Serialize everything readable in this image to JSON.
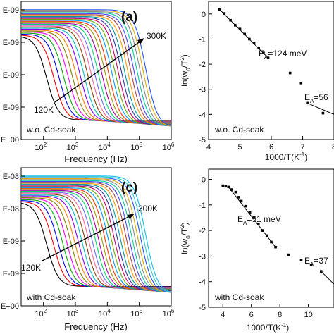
{
  "figure": {
    "panels": [
      {
        "label": "(a)",
        "annotation_high": "300K",
        "annotation_low": "120K",
        "sample": "w.o. Cd-soak"
      },
      {
        "label": "",
        "fit1": "E<sub>A</sub>=124 meV",
        "fit1_text": "E",
        "fit1_sub": "A",
        "fit1_rest": "=124 meV",
        "fit2_text": "E",
        "fit2_sub": "A",
        "fit2_rest": "=56",
        "sample": "w.o. Cd-soak"
      },
      {
        "label": "(c)",
        "annotation_high": "300K",
        "annotation_low": "120K",
        "sample": "with Cd-soak"
      },
      {
        "label": "",
        "fit1_text": "E",
        "fit1_sub": "A",
        "fit1_rest": "=51 meV",
        "fit2_text": "E",
        "fit2_sub": "A",
        "fit2_rest": "=37",
        "sample": "with Cd-soak"
      }
    ],
    "colors": [
      "#000000",
      "#ff0000",
      "#0000ff",
      "#00aa00",
      "#ff00ff",
      "#808000",
      "#ff8000",
      "#8000ff",
      "#00c0c0",
      "#804000",
      "#ff6699",
      "#6666ff",
      "#00dd66",
      "#aa00aa",
      "#999900",
      "#ff3300",
      "#0099ff",
      "#66aa00",
      "#cc0066",
      "#3333aa",
      "#009999",
      "#ff9900",
      "#aa4444",
      "#4444ff",
      "#00cc99",
      "#888888",
      "#ddaa00",
      "#2255ff",
      "#33cccc",
      "#11bbee"
    ]
  },
  "chart_data": [
    {
      "type": "line",
      "panel": "a",
      "xlabel": "Frequency (Hz)",
      "ylabel": "",
      "x_scale": "log",
      "xlim": [
        20,
        1000000
      ],
      "x_ticks": [
        "10^2",
        "10^3",
        "10^4",
        "10^5",
        "10^6"
      ],
      "y_ticks": [
        "E-09",
        "E-09",
        "E-09",
        "E+00"
      ],
      "y_tick_top": "E-09",
      "series_count": 28,
      "temperature_range": [
        "120K",
        "300K"
      ],
      "annotations": [
        "300K",
        "120K",
        "(a)",
        "w.o. Cd-soak"
      ]
    },
    {
      "type": "scatter",
      "panel": "b",
      "xlabel": "1000/T(K<sup>-1</sup>)",
      "xlabel_plain": "1000/T(K",
      "xlabel_sup": "-1",
      "xlabel_end": ")",
      "ylabel_plain": "ln(w",
      "ylabel_sub": "0",
      "ylabel_mid": "/T",
      "ylabel_sup": "2",
      "ylabel_end": ")",
      "xlim": [
        4,
        8
      ],
      "ylim": [
        -5,
        0.5
      ],
      "x_ticks": [
        "4",
        "5",
        "6",
        "7",
        "8"
      ],
      "y_ticks": [
        "0",
        "-1",
        "-2",
        "-3",
        "-4",
        "-5"
      ],
      "points_x": [
        4.35,
        4.5,
        4.7,
        4.85,
        5.0,
        5.15,
        5.3,
        5.45,
        5.6,
        5.75,
        5.9,
        6.6,
        6.95,
        7.15,
        7.65
      ],
      "points_y": [
        0.18,
        0.02,
        -0.25,
        -0.45,
        -0.6,
        -0.8,
        -1.0,
        -1.15,
        -1.35,
        -1.55,
        -1.75,
        -2.35,
        -2.75,
        -3.55,
        -3.95
      ],
      "fit_lines": [
        {
          "x": [
            4.35,
            5.9
          ],
          "y": [
            0.18,
            -1.75
          ]
        },
        {
          "x": [
            7.15,
            8.0
          ],
          "y": [
            -3.55,
            -4.0
          ]
        }
      ],
      "annotations": [
        "E_A=124 meV",
        "E_A=56",
        "w.o. Cd-soak"
      ]
    },
    {
      "type": "line",
      "panel": "c",
      "xlabel": "Frequency (Hz)",
      "ylabel": "",
      "x_scale": "log",
      "xlim": [
        20,
        1000000
      ],
      "x_ticks": [
        "10^2",
        "10^3",
        "10^4",
        "10^5",
        "10^6"
      ],
      "y_ticks": [
        "E-08",
        "E-08",
        "E-09",
        "E-09",
        "E+00"
      ],
      "series_count": 30,
      "temperature_range": [
        "120K",
        "300K"
      ],
      "annotations": [
        "300K",
        "120K",
        "(c)",
        "with Cd-soak"
      ]
    },
    {
      "type": "scatter",
      "panel": "d",
      "xlabel_plain": "1000/T(K",
      "xlabel_sup": "-1",
      "xlabel_end": ")",
      "ylabel_plain": "ln(w",
      "ylabel_sub": "0",
      "ylabel_mid": "/T",
      "ylabel_sup": "2",
      "ylabel_end": ")",
      "xlim": [
        3,
        11.8
      ],
      "ylim": [
        -5,
        0.4
      ],
      "x_ticks": [
        "4",
        "6",
        "8",
        "10"
      ],
      "y_ticks": [
        "0",
        "-1",
        "-2",
        "-3",
        "-4",
        "-5"
      ],
      "points_x": [
        4.0,
        4.2,
        4.4,
        4.6,
        4.9,
        5.1,
        5.3,
        5.6,
        5.9,
        6.2,
        6.5,
        6.8,
        7.1,
        7.4,
        7.7,
        8.6,
        9.5,
        10.2,
        10.9
      ],
      "points_y": [
        -0.25,
        -0.27,
        -0.3,
        -0.4,
        -0.5,
        -0.7,
        -0.85,
        -1.05,
        -1.3,
        -1.5,
        -1.75,
        -2.0,
        -2.2,
        -2.45,
        -2.65,
        -2.95,
        -3.15,
        -3.35,
        -3.6
      ],
      "fit_lines": [
        {
          "x": [
            4.4,
            7.7
          ],
          "y": [
            -0.3,
            -2.65
          ]
        },
        {
          "x": [
            10.9,
            11.8
          ],
          "y": [
            -3.6,
            -4.1
          ]
        }
      ],
      "annotations": [
        "E_A=51 meV",
        "E_A=37",
        "with Cd-soak"
      ]
    }
  ]
}
